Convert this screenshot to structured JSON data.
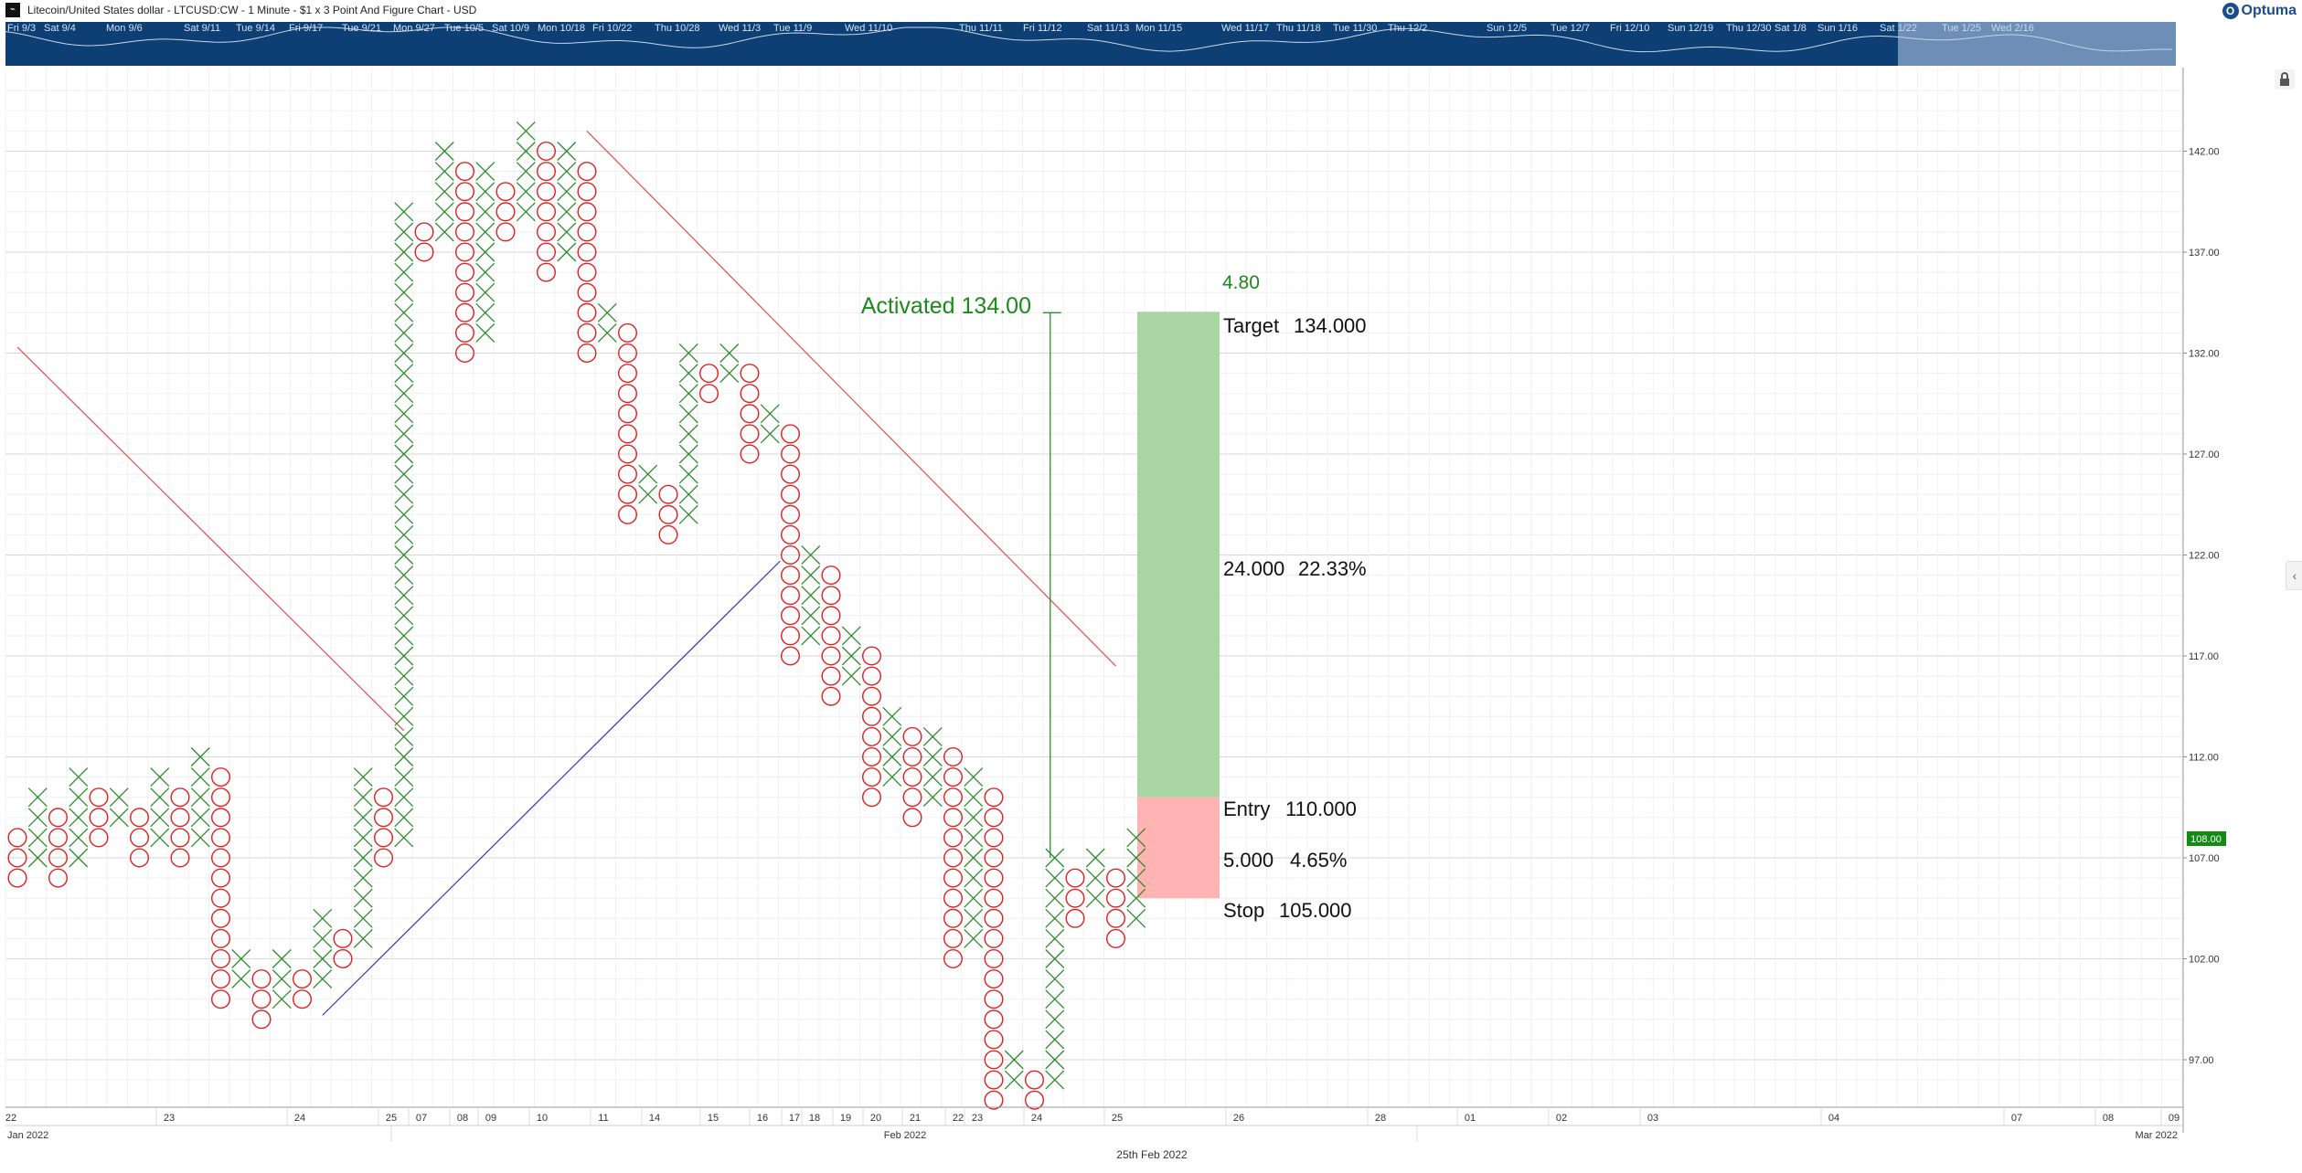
{
  "window": {
    "title": "Litecoin/United States dollar - LTCUSD:CW - 1 Minute - $1 x 3 Point And Figure Chart - USD",
    "logo_text": "Optuma"
  },
  "navigator": {
    "labels": [
      "Fri 9/3",
      "Sat 9/4",
      "Mon 9/6",
      "Sat 9/11",
      "Tue 9/14",
      "Fri 9/17",
      "Tue 9/21",
      "Mon 9/27",
      "Tue 10/5",
      "Sat 10/9",
      "Mon 10/18",
      "Fri 10/22",
      "Thu 10/28",
      "Wed 11/3",
      "Tue 11/9",
      "Wed 11/10",
      "Thu 11/11",
      "Fri 11/12",
      "Sat 11/13",
      "Mon 11/15",
      "Wed 11/17",
      "Thu 11/18",
      "Tue 11/30",
      "Thu 12/2",
      "Sun 12/5",
      "Tue 12/7",
      "Fri 12/10",
      "Sun 12/19",
      "Thu 12/30",
      "Sat 1/8",
      "Sun 1/16",
      "Sat 1/22",
      "Tue 1/25",
      "Wed 2/16"
    ]
  },
  "icons": {
    "lock": "lock-icon",
    "collapse": "chevron-left-icon",
    "logo": "optuma-logo-icon"
  },
  "colors": {
    "x_mark": "#2e8b2e",
    "o_mark": "#e02020",
    "target_zone": "#a8d5a2",
    "stop_zone": "#ffb3b3",
    "price_badge": "#138a13",
    "trend_red": "#e05050",
    "trend_blue": "#3333bb",
    "navigator": "#0d3e74"
  },
  "annotations": {
    "activated": "Activated 134.00",
    "top_value": "4.80",
    "target_label": "Target",
    "target_value": "134.000",
    "reward": "24.000",
    "reward_pct": "22.33%",
    "entry_label": "Entry",
    "entry_value": "110.000",
    "risk": "5.000",
    "risk_pct": "4.65%",
    "stop_label": "Stop",
    "stop_value": "105.000"
  },
  "price_badge": "108.00",
  "footer_date": "25th Feb 2022",
  "chart_data": {
    "type": "point-and-figure",
    "box_size": 1,
    "reversal": 3,
    "grid": true,
    "ylim": [
      95.5,
      145
    ],
    "y_ticks": [
      "142.00",
      "137.00",
      "132.00",
      "127.00",
      "122.00",
      "117.00",
      "112.00",
      "107.00",
      "102.00",
      "97.00"
    ],
    "x_tick_labels": [
      "22",
      "23",
      "24",
      "25",
      "07",
      "08",
      "09",
      "10",
      "11",
      "14",
      "15",
      "16",
      "17",
      "18",
      "19",
      "20",
      "21",
      "22",
      "23",
      "24",
      "25",
      "26",
      "28",
      "01",
      "02",
      "03",
      "04",
      "07",
      "08",
      "09"
    ],
    "x_month_labels": [
      "Jan 2022",
      "Feb 2022",
      "Mar 2022"
    ],
    "columns": [
      {
        "t": "O",
        "lo": 106,
        "hi": 108
      },
      {
        "t": "X",
        "lo": 107,
        "hi": 110
      },
      {
        "t": "O",
        "lo": 106,
        "hi": 109
      },
      {
        "t": "X",
        "lo": 107,
        "hi": 111
      },
      {
        "t": "O",
        "lo": 108,
        "hi": 110
      },
      {
        "t": "X",
        "lo": 109,
        "hi": 110
      },
      {
        "t": "O",
        "lo": 107,
        "hi": 109
      },
      {
        "t": "X",
        "lo": 108,
        "hi": 111
      },
      {
        "t": "O",
        "lo": 107,
        "hi": 110
      },
      {
        "t": "X",
        "lo": 108,
        "hi": 112
      },
      {
        "t": "O",
        "lo": 100,
        "hi": 111
      },
      {
        "t": "X",
        "lo": 101,
        "hi": 102
      },
      {
        "t": "O",
        "lo": 99,
        "hi": 101
      },
      {
        "t": "X",
        "lo": 100,
        "hi": 102
      },
      {
        "t": "O",
        "lo": 100,
        "hi": 101
      },
      {
        "t": "X",
        "lo": 101,
        "hi": 104
      },
      {
        "t": "O",
        "lo": 102,
        "hi": 103
      },
      {
        "t": "X",
        "lo": 103,
        "hi": 111
      },
      {
        "t": "O",
        "lo": 107,
        "hi": 110
      },
      {
        "t": "X",
        "lo": 108,
        "hi": 139
      },
      {
        "t": "O",
        "lo": 137,
        "hi": 138
      },
      {
        "t": "X",
        "lo": 138,
        "hi": 142
      },
      {
        "t": "O",
        "lo": 132,
        "hi": 141
      },
      {
        "t": "X",
        "lo": 133,
        "hi": 141
      },
      {
        "t": "O",
        "lo": 138,
        "hi": 140
      },
      {
        "t": "X",
        "lo": 139,
        "hi": 143
      },
      {
        "t": "O",
        "lo": 136,
        "hi": 142
      },
      {
        "t": "X",
        "lo": 137,
        "hi": 142
      },
      {
        "t": "O",
        "lo": 132,
        "hi": 141
      },
      {
        "t": "X",
        "lo": 133,
        "hi": 134
      },
      {
        "t": "O",
        "lo": 124,
        "hi": 133
      },
      {
        "t": "X",
        "lo": 125,
        "hi": 126
      },
      {
        "t": "O",
        "lo": 123,
        "hi": 125
      },
      {
        "t": "X",
        "lo": 124,
        "hi": 132
      },
      {
        "t": "O",
        "lo": 130,
        "hi": 131
      },
      {
        "t": "X",
        "lo": 131,
        "hi": 132
      },
      {
        "t": "O",
        "lo": 127,
        "hi": 131
      },
      {
        "t": "X",
        "lo": 128,
        "hi": 129
      },
      {
        "t": "O",
        "lo": 117,
        "hi": 128
      },
      {
        "t": "X",
        "lo": 118,
        "hi": 122
      },
      {
        "t": "O",
        "lo": 115,
        "hi": 121
      },
      {
        "t": "X",
        "lo": 116,
        "hi": 118
      },
      {
        "t": "O",
        "lo": 110,
        "hi": 117
      },
      {
        "t": "X",
        "lo": 111,
        "hi": 114
      },
      {
        "t": "O",
        "lo": 109,
        "hi": 113
      },
      {
        "t": "X",
        "lo": 110,
        "hi": 113
      },
      {
        "t": "O",
        "lo": 102,
        "hi": 112
      },
      {
        "t": "X",
        "lo": 103,
        "hi": 111
      },
      {
        "t": "O",
        "lo": 95,
        "hi": 110
      },
      {
        "t": "X",
        "lo": 96,
        "hi": 97
      },
      {
        "t": "O",
        "lo": 95,
        "hi": 96
      },
      {
        "t": "X",
        "lo": 96,
        "hi": 107
      },
      {
        "t": "O",
        "lo": 104,
        "hi": 106
      },
      {
        "t": "X",
        "lo": 105,
        "hi": 107
      },
      {
        "t": "O",
        "lo": 103,
        "hi": 106
      },
      {
        "t": "X",
        "lo": 104,
        "hi": 108
      }
    ],
    "trend_lines": [
      {
        "color": "red",
        "from": [
          0,
          132.3
        ],
        "to": [
          19,
          113.3
        ]
      },
      {
        "color": "blue",
        "from": [
          15,
          99.2
        ],
        "to": [
          37.5,
          121.7
        ]
      },
      {
        "color": "red",
        "from": [
          28,
          143
        ],
        "to": [
          54,
          116.5
        ]
      }
    ],
    "trade": {
      "entry": 110,
      "target": 134,
      "stop": 105,
      "activated": 134,
      "activation_column": 51
    }
  }
}
